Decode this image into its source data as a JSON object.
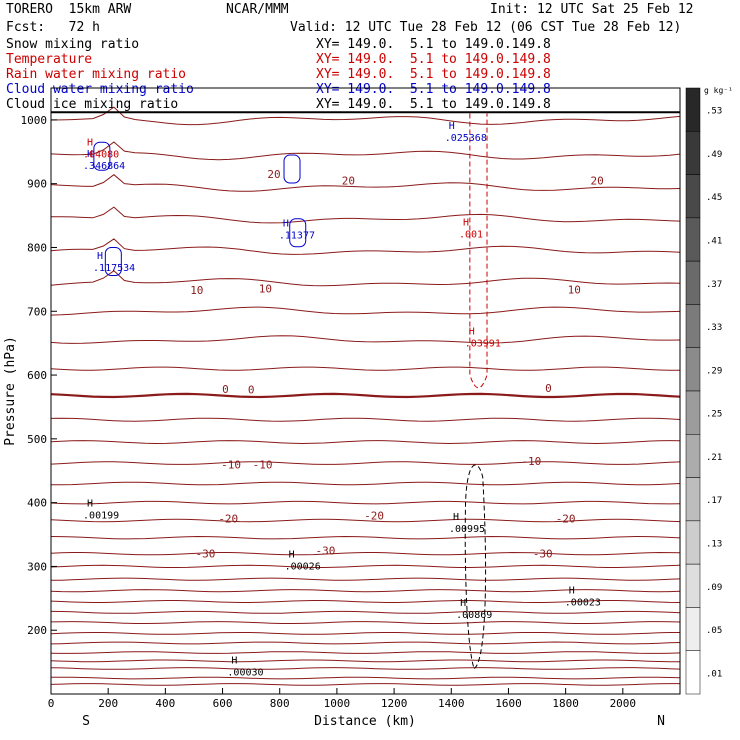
{
  "header": {
    "model": "TORERO  15km ARW",
    "center": "NCAR/MMM",
    "init": "Init: 12 UTC Sat 25 Feb 12",
    "fcst": "Fcst:   72 h",
    "valid": "Valid: 12 UTC Tue 28 Feb 12 (06 CST Tue 28 Feb 12)"
  },
  "fields": [
    {
      "name": "Snow mixing ratio",
      "xy": "",
      "color": "#000000"
    },
    {
      "name": "Temperature",
      "xy": "XY= 149.0.  5.1 to 149.0.149.8",
      "color": "#cc0000"
    },
    {
      "name": "Rain water mixing ratio",
      "xy": "XY= 149.0.  5.1 to 149.0.149.8",
      "color": "#cc0000"
    },
    {
      "name": "Cloud water mixing ratio",
      "xy": "XY= 149.0.  5.1 to 149.0.149.8",
      "color": "#0000cc"
    },
    {
      "name": "Cloud ice mixing ratio",
      "xy": "XY= 149.0.  5.1 to 149.0.149.8",
      "color": "#000000"
    }
  ],
  "snow_xy": "XY= 149.0.  5.1 to 149.0.149.8",
  "chart_data": {
    "type": "contour",
    "xlabel": "Distance (km)",
    "ylabel": "Pressure (hPa)",
    "xlim": [
      0,
      2200
    ],
    "ylim": [
      1050,
      100
    ],
    "x_ticks": [
      0,
      200,
      400,
      600,
      800,
      1000,
      1200,
      1400,
      1600,
      1800,
      2000
    ],
    "y_ticks": [
      200,
      300,
      400,
      500,
      600,
      700,
      800,
      900,
      1000
    ],
    "x_end_labels": {
      "left": "S",
      "right": "N"
    },
    "colorbar": {
      "unit": "g kg⁻¹",
      "levels": [
        ".53",
        ".49",
        ".45",
        ".41",
        ".37",
        ".33",
        ".29",
        ".25",
        ".21",
        ".17",
        ".13",
        ".09",
        ".05",
        ".01"
      ]
    },
    "temperature_labels": [
      {
        "text": "-30",
        "x": 540,
        "p": 320
      },
      {
        "text": "-30",
        "x": 960,
        "p": 325
      },
      {
        "text": "-30",
        "x": 1720,
        "p": 320
      },
      {
        "text": "-20",
        "x": 620,
        "p": 375
      },
      {
        "text": "-20",
        "x": 1130,
        "p": 380
      },
      {
        "text": "-20",
        "x": 1800,
        "p": 375
      },
      {
        "text": "-10",
        "x": 630,
        "p": 460
      },
      {
        "text": "-10",
        "x": 740,
        "p": 460
      },
      {
        "text": "-10",
        "x": 1680,
        "p": 465
      },
      {
        "text": "0",
        "x": 610,
        "p": 578
      },
      {
        "text": "0",
        "x": 700,
        "p": 577
      },
      {
        "text": "0",
        "x": 1740,
        "p": 580
      },
      {
        "text": "10",
        "x": 510,
        "p": 733
      },
      {
        "text": "10",
        "x": 750,
        "p": 736
      },
      {
        "text": "10",
        "x": 1830,
        "p": 734
      },
      {
        "text": "20",
        "x": 780,
        "p": 915
      },
      {
        "text": "20",
        "x": 1040,
        "p": 905
      },
      {
        "text": "20",
        "x": 1910,
        "p": 905
      }
    ],
    "maxima": [
      {
        "text": ".00030",
        "x": 680,
        "p": 132,
        "color": "#000000"
      },
      {
        "text": ".00869",
        "x": 1480,
        "p": 222,
        "color": "#000000"
      },
      {
        "text": ".00023",
        "x": 1860,
        "p": 242,
        "color": "#000000"
      },
      {
        "text": ".00026",
        "x": 880,
        "p": 298,
        "color": "#000000"
      },
      {
        "text": ".00995",
        "x": 1455,
        "p": 357,
        "color": "#000000"
      },
      {
        "text": ".00199",
        "x": 175,
        "p": 378,
        "color": "#000000"
      },
      {
        "text": ".03991",
        "x": 1510,
        "p": 648,
        "color": "#cc0000"
      },
      {
        "text": ".117534",
        "x": 210,
        "p": 766,
        "color": "#0000cc"
      },
      {
        "text": ".11377",
        "x": 860,
        "p": 817,
        "color": "#0000cc"
      },
      {
        "text": ".001",
        "x": 1490,
        "p": 819,
        "color": "#cc0000"
      },
      {
        "text": ".346864",
        "x": 175,
        "p": 926,
        "color": "#0000cc"
      },
      {
        "text": ".04080",
        "x": 175,
        "p": 944,
        "color": "#cc0000"
      },
      {
        "text": ".025368",
        "x": 1440,
        "p": 970,
        "color": "#0000cc"
      }
    ]
  }
}
